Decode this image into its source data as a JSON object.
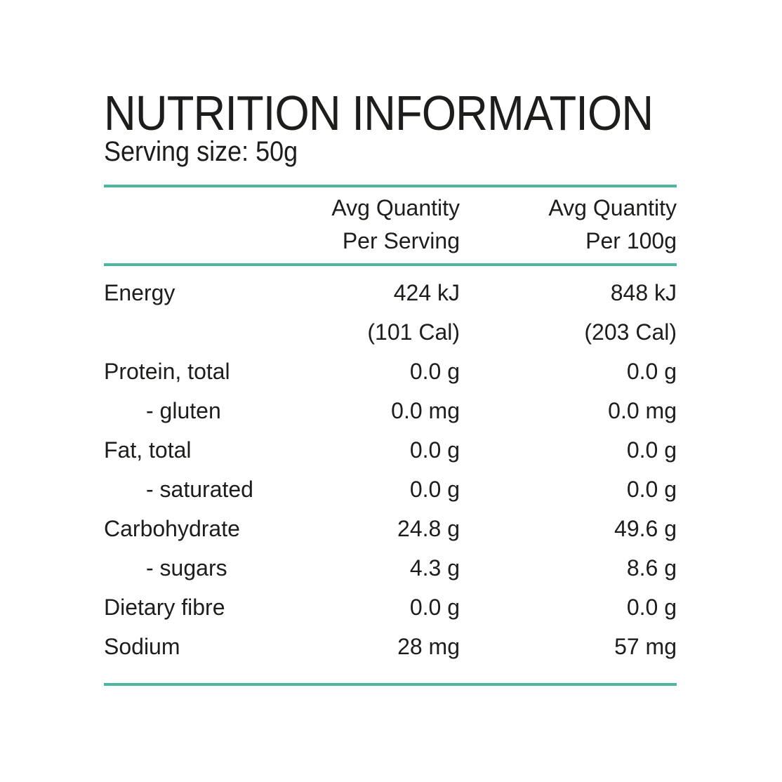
{
  "title": "NUTRITION INFORMATION",
  "serving_size": "Serving size: 50g",
  "colors": {
    "accent_rule": "#4db6a0",
    "text": "#1d1d1b",
    "background": "#ffffff"
  },
  "table": {
    "header": {
      "serving_col": {
        "line1": "Avg Quantity",
        "line2": "Per Serving"
      },
      "per100_col": {
        "line1": "Avg Quantity",
        "line2": "Per 100g"
      }
    },
    "rows": [
      {
        "label": "Energy",
        "per_serving": "424 kJ",
        "per_100g": "848 kJ",
        "indent": false
      },
      {
        "label": "",
        "per_serving": "(101 Cal)",
        "per_100g": "(203 Cal)",
        "indent": false
      },
      {
        "label": "Protein, total",
        "per_serving": "0.0 g",
        "per_100g": "0.0 g",
        "indent": false
      },
      {
        "label": "- gluten",
        "per_serving": "0.0 mg",
        "per_100g": "0.0 mg",
        "indent": true
      },
      {
        "label": "Fat, total",
        "per_serving": "0.0 g",
        "per_100g": "0.0 g",
        "indent": false
      },
      {
        "label": "- saturated",
        "per_serving": "0.0 g",
        "per_100g": "0.0 g",
        "indent": true
      },
      {
        "label": "Carbohydrate",
        "per_serving": "24.8 g",
        "per_100g": "49.6 g",
        "indent": false
      },
      {
        "label": "- sugars",
        "per_serving": "4.3 g",
        "per_100g": "8.6 g",
        "indent": true
      },
      {
        "label": "Dietary fibre",
        "per_serving": "0.0 g",
        "per_100g": "0.0 g",
        "indent": false
      },
      {
        "label": "Sodium",
        "per_serving": "28 mg",
        "per_100g": "57 mg",
        "indent": false
      }
    ]
  }
}
